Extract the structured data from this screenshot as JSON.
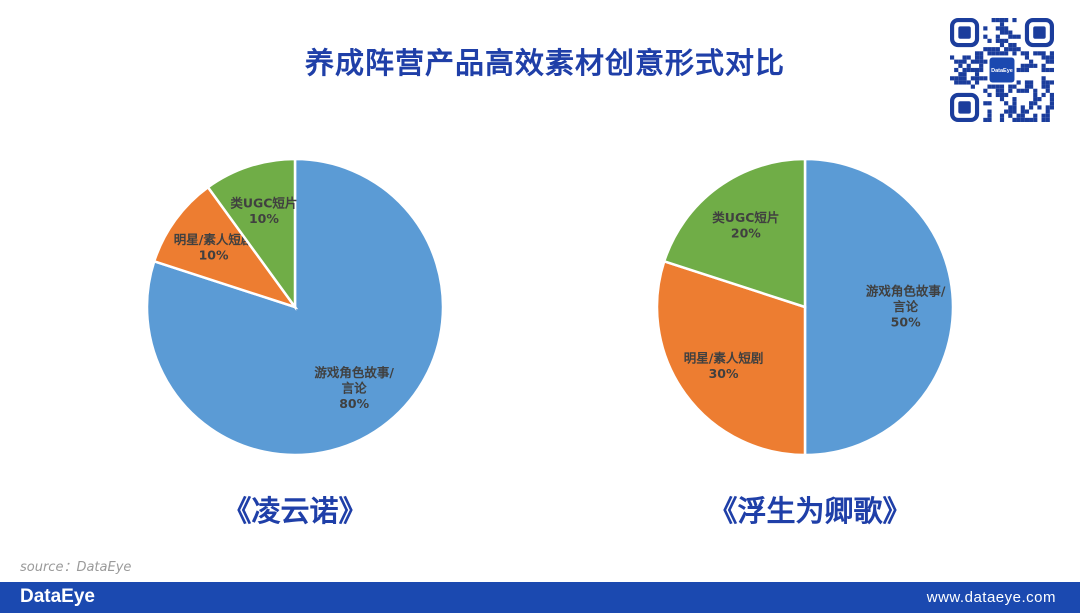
{
  "title": "养成阵营产品高效素材创意形式对比",
  "source": "source：DataEye",
  "footer": {
    "logo": "DataEye",
    "url": "www.dataeye.com"
  },
  "qr": {
    "center_text": "DataEye"
  },
  "colors": {
    "title": "#1f3fa8",
    "footer": "#1b49b0",
    "blue": "#5b9bd5",
    "orange": "#ed7d31",
    "green": "#70ad47"
  },
  "chart_data": [
    {
      "type": "pie",
      "caption": "《凌云诺》",
      "slices": [
        {
          "label_lines": [
            "游戏角色故事/",
            "言论"
          ],
          "value": 80,
          "value_label": "80%",
          "color": "#5b9bd5"
        },
        {
          "label_lines": [
            "明星/素人短剧"
          ],
          "value": 10,
          "value_label": "10%",
          "color": "#ed7d31"
        },
        {
          "label_lines": [
            "类UGC短片"
          ],
          "value": 10,
          "value_label": "10%",
          "color": "#70ad47"
        }
      ]
    },
    {
      "type": "pie",
      "caption": "《浮生为卿歌》",
      "slices": [
        {
          "label_lines": [
            "游戏角色故事/",
            "言论"
          ],
          "value": 50,
          "value_label": "50%",
          "color": "#5b9bd5"
        },
        {
          "label_lines": [
            "明星/素人短剧"
          ],
          "value": 30,
          "value_label": "30%",
          "color": "#ed7d31"
        },
        {
          "label_lines": [
            "类UGC短片"
          ],
          "value": 20,
          "value_label": "20%",
          "color": "#70ad47"
        }
      ]
    }
  ]
}
